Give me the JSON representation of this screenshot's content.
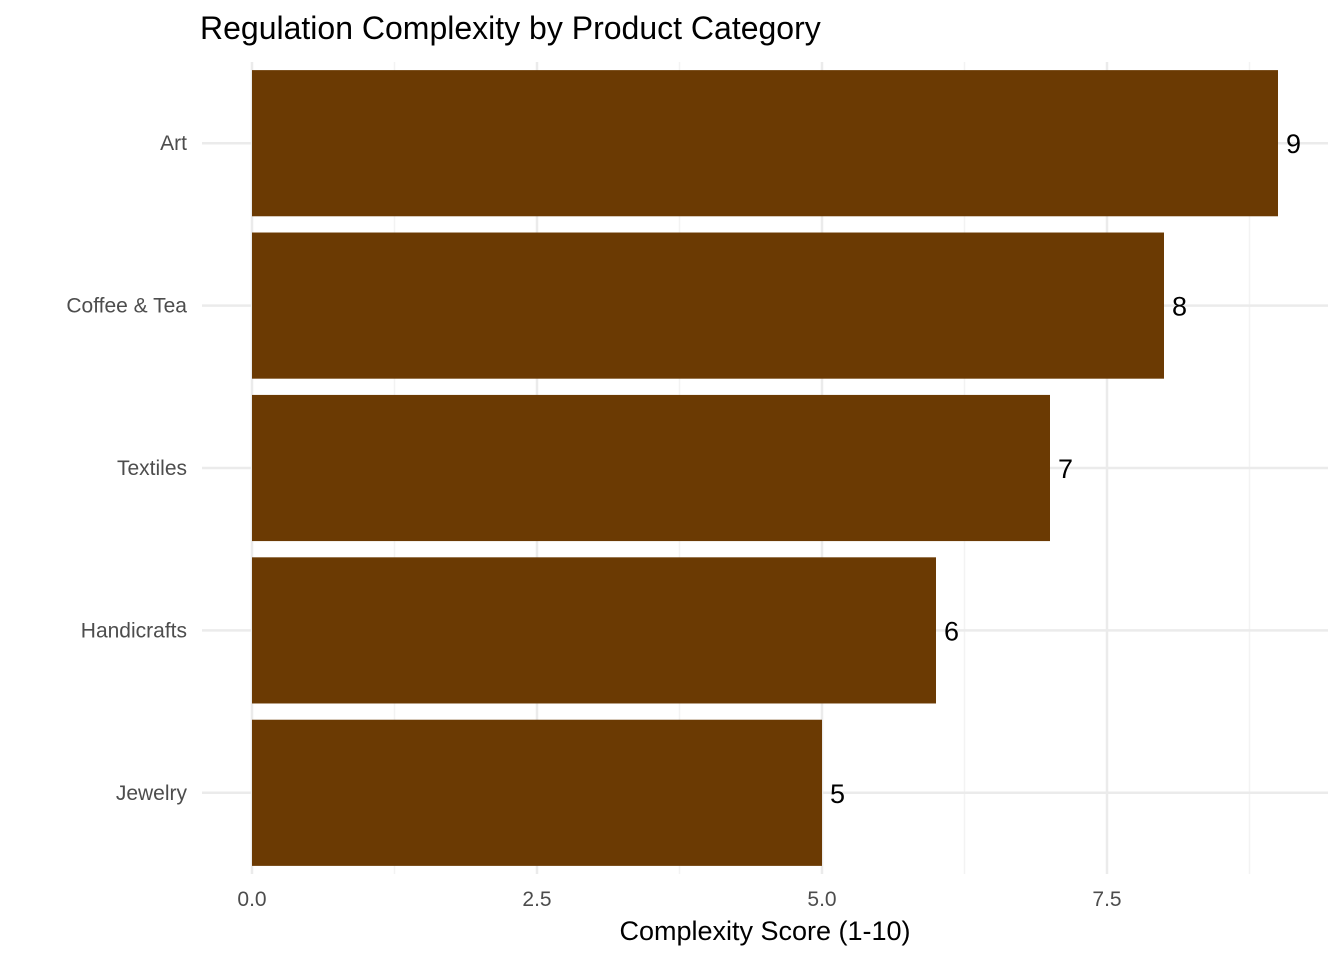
{
  "chart_data": {
    "type": "bar",
    "orientation": "horizontal",
    "title": "Regulation Complexity by Product Category",
    "xlabel": "Complexity Score (1-10)",
    "ylabel": "",
    "categories": [
      "Art",
      "Coffee & Tea",
      "Textiles",
      "Handicrafts",
      "Jewelry"
    ],
    "values": [
      9,
      8,
      7,
      6,
      5
    ],
    "data_labels": [
      "9",
      "8",
      "7",
      "6",
      "5"
    ],
    "x_ticks": [
      0,
      2.5,
      5,
      7.5
    ],
    "x_tick_labels": [
      "0.0",
      "2.5",
      "5.0",
      "7.5"
    ],
    "xlim": [
      0,
      9.45
    ],
    "grid": true,
    "legend": "none",
    "colors": {
      "bar": "#6B3A03",
      "grid_major": "#EBEBEB",
      "grid_minor": "#F3F3F3",
      "background": "#FFFFFF"
    }
  }
}
